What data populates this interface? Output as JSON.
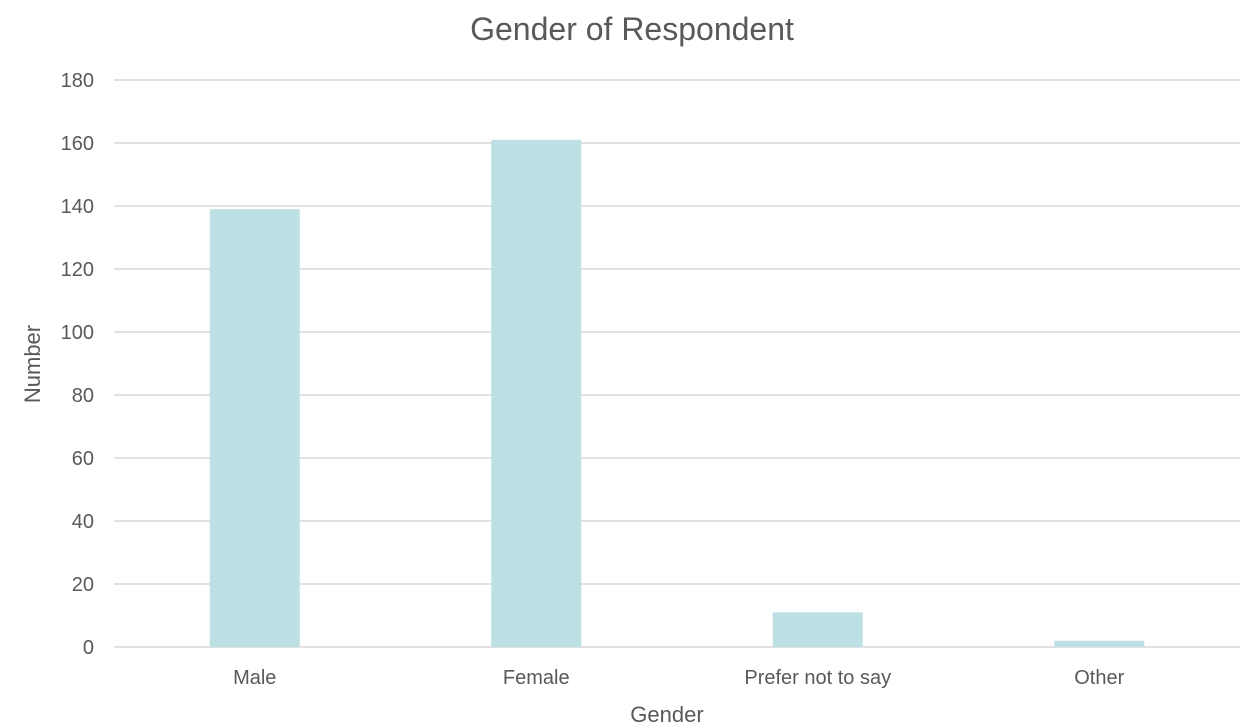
{
  "chart_data": {
    "type": "bar",
    "title": "Gender of Respondent",
    "xlabel": "Gender",
    "ylabel": "Number",
    "categories": [
      "Male",
      "Female",
      "Prefer not to say",
      "Other"
    ],
    "values": [
      139,
      161,
      11,
      2
    ],
    "ylim": [
      0,
      180
    ],
    "yticks": [
      0,
      20,
      40,
      60,
      80,
      100,
      120,
      140,
      160,
      180
    ],
    "grid": true,
    "legend": "none",
    "bar_color": "#bde0e4",
    "grid_color": "#d9d9d9",
    "text_color": "#595959"
  }
}
